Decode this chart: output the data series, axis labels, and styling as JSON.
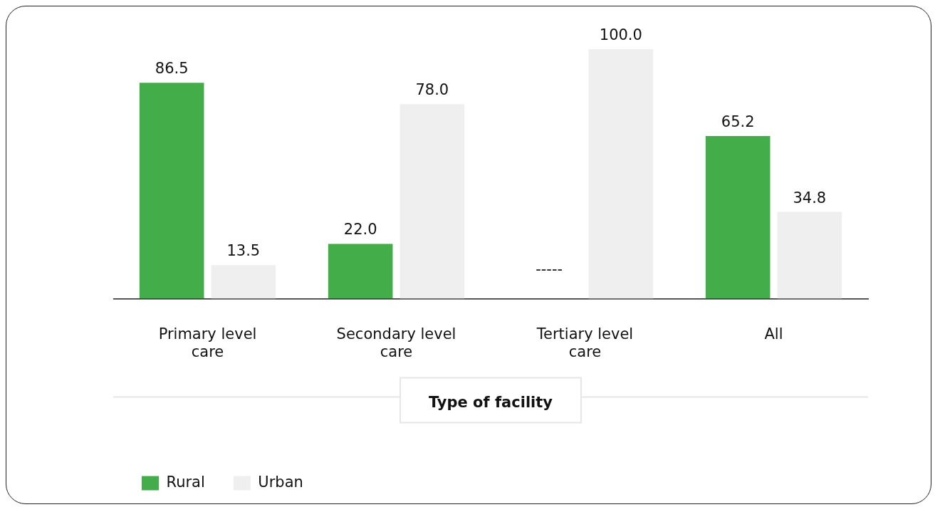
{
  "chart_data": {
    "type": "bar",
    "xlabel": "Type of facility",
    "categories": [
      "Primary level care",
      "Secondary level care",
      "Tertiary level care",
      "All"
    ],
    "series": [
      {
        "name": "Rural",
        "color": "#43ad4a",
        "values": [
          86.5,
          22.0,
          null,
          65.2
        ],
        "value_labels": [
          "86.5",
          "22.0",
          "-----",
          "65.2"
        ]
      },
      {
        "name": "Urban",
        "color": "#efefef",
        "values": [
          13.5,
          78.0,
          100.0,
          34.8
        ],
        "value_labels": [
          "13.5",
          "78.0",
          "100.0",
          "34.8"
        ]
      }
    ],
    "ylim": [
      0,
      100
    ],
    "tick_labels": "x",
    "grid": false,
    "legend": "bottom left"
  }
}
